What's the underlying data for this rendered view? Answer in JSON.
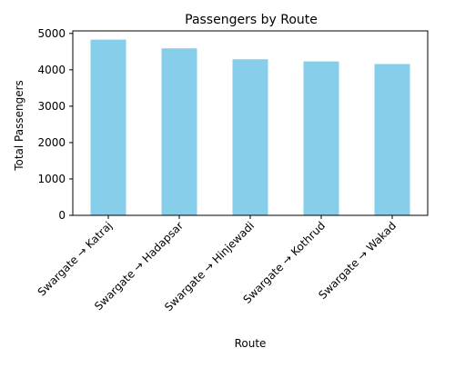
{
  "chart_data": {
    "type": "bar",
    "title": "Passengers by Route",
    "xlabel": "Route",
    "ylabel": "Total Passengers",
    "categories": [
      "Swargate → Katraj",
      "Swargate → Hadapsar",
      "Swargate → Hinjewadi",
      "Swargate → Kothrud",
      "Swargate → Wakad"
    ],
    "values": [
      4830,
      4590,
      4290,
      4230,
      4160
    ],
    "ylim": [
      0,
      5070
    ],
    "yticks": [
      0,
      1000,
      2000,
      3000,
      4000,
      5000
    ],
    "bar_color": "#87ceeb",
    "grid": false,
    "legend": "none"
  }
}
